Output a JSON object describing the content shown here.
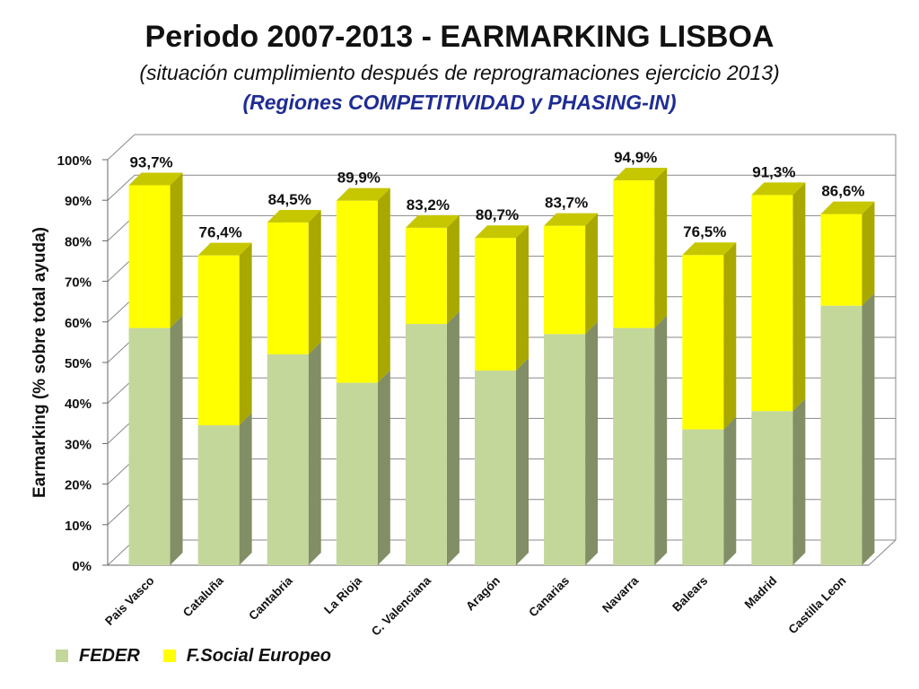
{
  "header": {
    "title": "Periodo 2007-2013 - EARMARKING LISBOA",
    "subtitle": "(situación cumplimiento después de reprogramaciones ejercicio 2013)",
    "subtitle2": "(Regiones COMPETITIVIDAD y PHASING-IN)"
  },
  "chart_data": {
    "type": "bar",
    "stacked": true,
    "title": "Periodo 2007-2013 - EARMARKING LISBOA",
    "xlabel": "",
    "ylabel": "Earmarking (% sobre total ayuda)",
    "ylim": [
      0,
      100
    ],
    "yticks": [
      "0%",
      "10%",
      "20%",
      "30%",
      "40%",
      "50%",
      "60%",
      "70%",
      "80%",
      "90%",
      "100%"
    ],
    "categories": [
      "Pais Vasco",
      "Cataluña",
      "Cantabria",
      "La Rioja",
      "C. Valenciana",
      "Aragón",
      "Canarias",
      "Navarra",
      "Balears",
      "Madrid",
      "Castilla Leon"
    ],
    "series": [
      {
        "name": "FEDER",
        "color": "#c4d79b",
        "values": [
          58.5,
          34.5,
          52,
          45,
          59.5,
          48,
          57,
          58.5,
          33.5,
          38,
          64
        ]
      },
      {
        "name": "F.Social Europeo",
        "color": "#ffff00",
        "values": [
          35.2,
          41.9,
          32.5,
          44.9,
          23.7,
          32.7,
          26.7,
          36.4,
          43,
          53.3,
          22.6
        ]
      }
    ],
    "totals": [
      93.7,
      76.4,
      84.5,
      89.9,
      83.2,
      80.7,
      83.7,
      94.9,
      76.5,
      91.3,
      86.6
    ],
    "total_labels": [
      "93,7%",
      "76,4%",
      "84,5%",
      "89,9%",
      "83,2%",
      "80,7%",
      "83,7%",
      "94,9%",
      "76,5%",
      "91,3%",
      "86,6%"
    ],
    "grid": true,
    "legend": "bottom-left"
  }
}
